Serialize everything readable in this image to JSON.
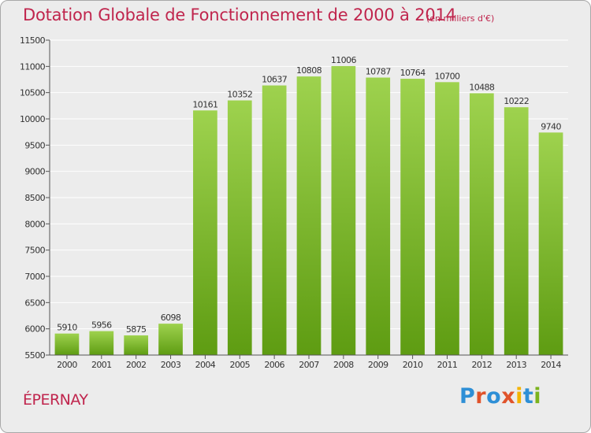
{
  "title": "Dotation Globale de Fonctionnement de 2000 à 2014",
  "subtitle": "(en milliers d'€)",
  "city": "ÉPERNAY",
  "logo": {
    "text": "Proxiti",
    "colors": [
      "#2e8fd6",
      "#e0532b",
      "#2e8fd6",
      "#e0532b",
      "#f4b400",
      "#2e8fd6",
      "#7bb31e"
    ]
  },
  "colors": {
    "bar_top": "#9ed24e",
    "bar_bottom": "#5e9c12",
    "title": "#c0254d",
    "grid": "#ffffff",
    "axis": "#555555",
    "text": "#333333"
  },
  "chart_data": {
    "type": "bar",
    "title": "Dotation Globale de Fonctionnement de 2000 à 2014",
    "subtitle": "(en milliers d'€)",
    "xlabel": "",
    "ylabel": "",
    "categories": [
      "2000",
      "2001",
      "2002",
      "2003",
      "2004",
      "2005",
      "2006",
      "2007",
      "2008",
      "2009",
      "2010",
      "2011",
      "2012",
      "2013",
      "2014"
    ],
    "values": [
      5910,
      5956,
      5875,
      6098,
      10161,
      10352,
      10637,
      10808,
      11006,
      10787,
      10764,
      10700,
      10488,
      10222,
      9740
    ],
    "ylim": [
      5500,
      11500
    ],
    "yticks": [
      5500,
      6000,
      6500,
      7000,
      7500,
      8000,
      8500,
      9000,
      9500,
      10000,
      10500,
      11000,
      11500
    ],
    "grid": true,
    "legend": "none"
  }
}
